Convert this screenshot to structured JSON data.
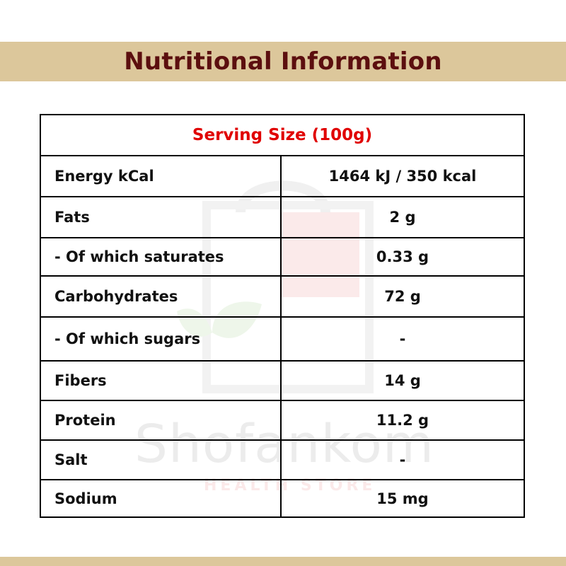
{
  "header": {
    "title": "Nutritional Information"
  },
  "watermark": {
    "brand": "Shofankom",
    "tagline": "HEALTH STORE"
  },
  "table": {
    "serving_size": "Serving Size (100g)",
    "rows": [
      {
        "label": "Energy kCal",
        "value": "1464 kJ / 350 kcal"
      },
      {
        "label": "Fats",
        "value": "2 g"
      },
      {
        "label": "- Of which saturates",
        "value": "0.33 g"
      },
      {
        "label": "Carbohydrates",
        "value": "72 g"
      },
      {
        "label": "- Of which sugars",
        "value": "-"
      },
      {
        "label": "Fibers",
        "value": "14 g"
      },
      {
        "label": "Protein",
        "value": "11.2 g"
      },
      {
        "label": "Salt",
        "value": "-"
      },
      {
        "label": "Sodium",
        "value": "15 mg"
      }
    ]
  },
  "colors": {
    "band": "#dcc79b",
    "title": "#5c0f0f",
    "serving": "#e00000",
    "border": "#000000"
  }
}
